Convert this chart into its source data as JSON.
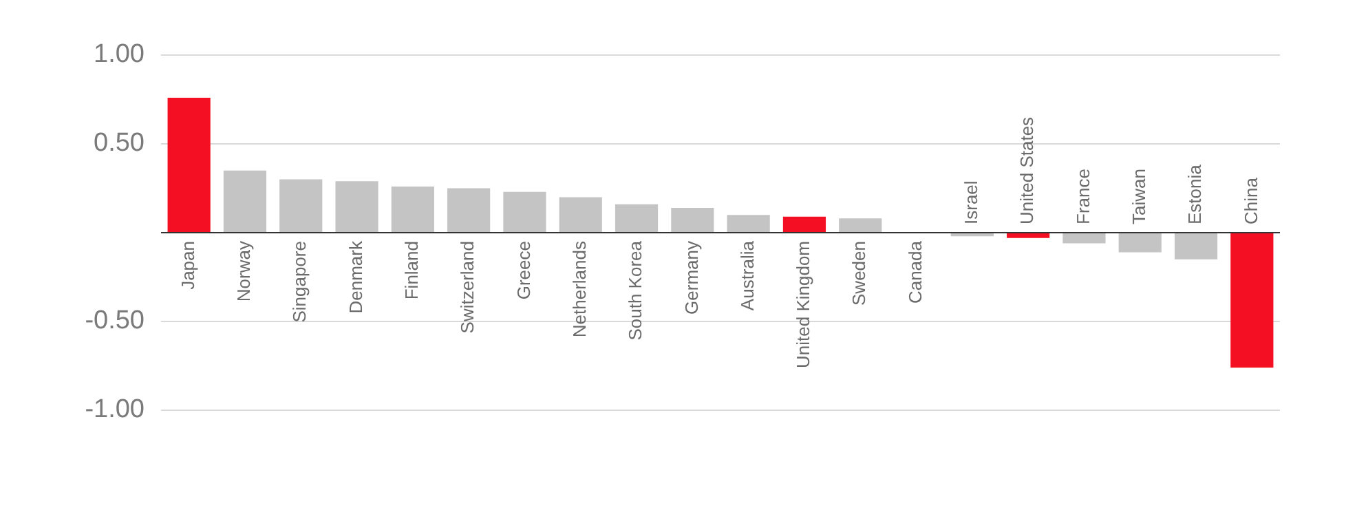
{
  "chart_data": {
    "type": "bar",
    "categories": [
      "Japan",
      "Norway",
      "Singapore",
      "Denmark",
      "Finland",
      "Switzerland",
      "Greece",
      "Netherlands",
      "South Korea",
      "Germany",
      "Australia",
      "United Kingdom",
      "Sweden",
      "Canada",
      "Israel",
      "United States",
      "France",
      "Taiwan",
      "Estonia",
      "China"
    ],
    "values": [
      0.76,
      0.35,
      0.3,
      0.29,
      0.26,
      0.25,
      0.23,
      0.2,
      0.16,
      0.14,
      0.1,
      0.09,
      0.08,
      0,
      -0.02,
      -0.03,
      -0.06,
      -0.11,
      -0.15,
      -0.76
    ],
    "colors": [
      "#f40f22",
      "#c4c4c4",
      "#c4c4c4",
      "#c4c4c4",
      "#c4c4c4",
      "#c4c4c4",
      "#c4c4c4",
      "#c4c4c4",
      "#c4c4c4",
      "#c4c4c4",
      "#c4c4c4",
      "#f40f22",
      "#c4c4c4",
      "#c4c4c4",
      "#c4c4c4",
      "#f40f22",
      "#c4c4c4",
      "#c4c4c4",
      "#c4c4c4",
      "#f40f22"
    ],
    "ylim": [
      -1,
      1
    ],
    "yticks": [
      {
        "value": -1,
        "label": "-1.00"
      },
      {
        "value": -0.5,
        "label": "-0.50"
      },
      {
        "value": 0,
        "label": null
      },
      {
        "value": 0.5,
        "label": "0.50"
      },
      {
        "value": 1,
        "label": "1.00"
      }
    ],
    "grid": "y",
    "legend": false
  }
}
